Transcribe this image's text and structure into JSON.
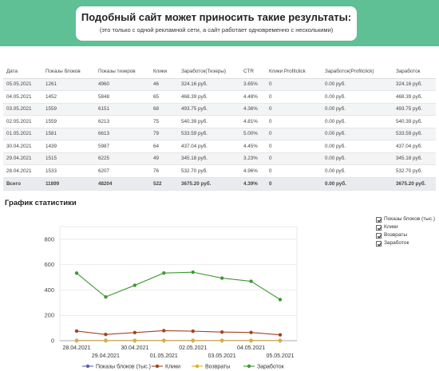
{
  "banner": {
    "title": "Подобный сайт может приносить такие результаты:",
    "subtitle": "(это только с одной рекламной сети, а сайт работает одновременно с несколькими)"
  },
  "table": {
    "headers": [
      "Дата",
      "Показы блоков",
      "Показы тизеров",
      "Клики",
      "Заработок(Тизеры)",
      "CTR",
      "Клики Profitclick",
      "Заработок(Profitclick)",
      "Заработок"
    ],
    "rows": [
      [
        "05.05.2021",
        "1261",
        "4960",
        "46",
        "324.16 руб.",
        "3.65%",
        "0",
        "0.00 руб.",
        "324.16 руб."
      ],
      [
        "04.05.2021",
        "1452",
        "5848",
        "65",
        "468.39 руб.",
        "4.48%",
        "0",
        "0.00 руб.",
        "468.39 руб."
      ],
      [
        "03.05.2021",
        "1559",
        "6151",
        "68",
        "493.75 руб.",
        "4.36%",
        "0",
        "0.00 руб.",
        "493.75 руб."
      ],
      [
        "02.05.2021",
        "1559",
        "6213",
        "75",
        "540.39 руб.",
        "4.81%",
        "0",
        "0.00 руб.",
        "540.39 руб."
      ],
      [
        "01.05.2021",
        "1581",
        "6613",
        "79",
        "533.59 руб.",
        "5.00%",
        "0",
        "0.00 руб.",
        "533.59 руб."
      ],
      [
        "30.04.2021",
        "1439",
        "5987",
        "64",
        "437.04 руб.",
        "4.45%",
        "0",
        "0.00 руб.",
        "437.04 руб."
      ],
      [
        "29.04.2021",
        "1515",
        "6225",
        "49",
        "345.18 руб.",
        "3.23%",
        "0",
        "0.00 руб.",
        "345.18 руб."
      ],
      [
        "28.04.2021",
        "1533",
        "6207",
        "76",
        "532.70 руб.",
        "4.96%",
        "0",
        "0.00 руб.",
        "532.70 руб."
      ]
    ],
    "total": [
      "Всего",
      "11899",
      "48204",
      "522",
      "3675.20 руб.",
      "4.39%",
      "0",
      "0.00 руб.",
      "3675.20 руб."
    ]
  },
  "chart_title": "График статистики",
  "legend_toggles": [
    "Показы блоков (тыс.)",
    "Клики",
    "Возвраты",
    "Заработок"
  ],
  "chart_data": {
    "type": "line",
    "x": [
      "28.04.2021",
      "29.04.2021",
      "30.04.2021",
      "01.05.2021",
      "02.05.2021",
      "03.05.2021",
      "04.05.2021",
      "05.05.2021"
    ],
    "ylim": [
      0,
      900
    ],
    "yticks": [
      0,
      200,
      400,
      600,
      800
    ],
    "series": [
      {
        "name": "Показы блоков (тыс.)",
        "color": "#5b5fae",
        "values": [
          1.533,
          1.515,
          1.439,
          1.581,
          1.559,
          1.559,
          1.452,
          1.261
        ]
      },
      {
        "name": "Клики",
        "color": "#a4441f",
        "values": [
          76,
          49,
          64,
          79,
          75,
          68,
          65,
          46
        ]
      },
      {
        "name": "Возвраты",
        "color": "#e0b020",
        "values": [
          0,
          0,
          0,
          0,
          0,
          0,
          0,
          0
        ]
      },
      {
        "name": "Заработок",
        "color": "#3e9a32",
        "values": [
          532.7,
          345.18,
          437.04,
          533.59,
          540.39,
          493.75,
          468.39,
          324.16
        ]
      }
    ],
    "legend": "bottom"
  }
}
